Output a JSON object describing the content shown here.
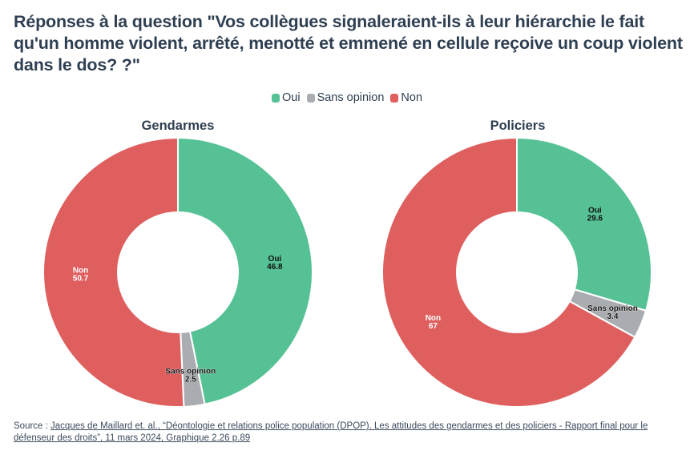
{
  "title": "Réponses à la question \"Vos collègues signaleraient-ils à leur hiérarchie le fait qu'un homme violent, arrêté, menotté et emmené en cellule reçoive un coup violent dans le dos? ?\"",
  "legend": [
    {
      "label": "Oui",
      "color": "#57c196"
    },
    {
      "label": "Sans opinion",
      "color": "#a9acb0"
    },
    {
      "label": "Non",
      "color": "#df5f5f"
    }
  ],
  "source": {
    "prefix": "Source : ",
    "link_text": "Jacques de Maillard et. al., “Déontologie et relations police population (DPOP). Les attitudes des gendarmes et des policiers - Rapport final pour le défenseur des droits”, 11 mars 2024, Graphique 2.26 p.89"
  },
  "chart_data": [
    {
      "type": "pie",
      "variant": "donut",
      "title": "Gendarmes",
      "categories": [
        "Oui",
        "Sans opinion",
        "Non"
      ],
      "values": [
        46.8,
        2.5,
        50.7
      ],
      "colors": [
        "#57c196",
        "#a9acb0",
        "#df5f5f"
      ],
      "label_colors": [
        "#111111",
        "#111111",
        "#ffffff"
      ],
      "start_angle": "top",
      "direction": "clockwise"
    },
    {
      "type": "pie",
      "variant": "donut",
      "title": "Policiers",
      "categories": [
        "Oui",
        "Sans opinion",
        "Non"
      ],
      "values": [
        29.6,
        3.4,
        67
      ],
      "colors": [
        "#57c196",
        "#a9acb0",
        "#df5f5f"
      ],
      "label_colors": [
        "#111111",
        "#111111",
        "#ffffff"
      ],
      "start_angle": "top",
      "direction": "clockwise"
    }
  ]
}
